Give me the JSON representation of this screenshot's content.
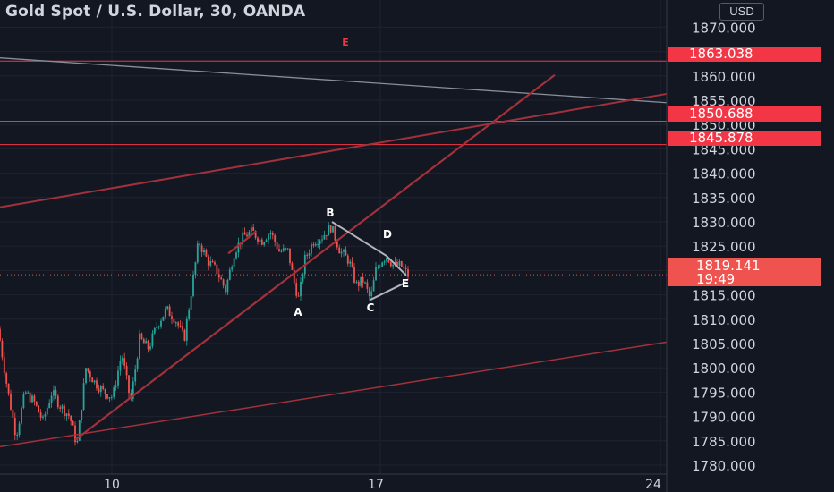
{
  "header": {
    "title": "Gold Spot / U.S. Dollar, 30, OANDA",
    "currency": "USD"
  },
  "price_tags": [
    {
      "label": "1863.038",
      "price": 1863.038
    },
    {
      "label": "1850.688",
      "price": 1850.688
    },
    {
      "label": "1845.878",
      "price": 1845.878
    }
  ],
  "last_price": {
    "price": "1819.141",
    "countdown": "19:49"
  },
  "wave_labels": {
    "A": "A",
    "B": "B",
    "C": "C",
    "D": "D",
    "E": "E",
    "E_top": "E"
  },
  "chart_data": {
    "type": "line",
    "title": "Gold Spot / U.S. Dollar, 30, OANDA",
    "y_tick_labels": [
      "1870.000",
      "1865.000",
      "1860.000",
      "1855.000",
      "1850.000",
      "1845.000",
      "1840.000",
      "1835.000",
      "1830.000",
      "1825.000",
      "1820.000",
      "1815.000",
      "1810.000",
      "1805.000",
      "1800.000",
      "1795.000",
      "1790.000",
      "1785.000",
      "1780.000"
    ],
    "x_tick_labels": [
      "10",
      "17",
      "24"
    ],
    "ylim": [
      1777,
      1871
    ],
    "grid": true,
    "colors": {
      "up": "#26a69a",
      "down": "#ef5350",
      "trendline": "#a3313b",
      "horizontal": "#f23645",
      "pattern": "#b2b5be"
    },
    "close_path": [
      [
        -2,
        1808
      ],
      [
        8,
        1796
      ],
      [
        18,
        1786
      ],
      [
        28,
        1795
      ],
      [
        38,
        1793
      ],
      [
        48,
        1789
      ],
      [
        58,
        1795
      ],
      [
        68,
        1792
      ],
      [
        78,
        1790
      ],
      [
        86,
        1784
      ],
      [
        96,
        1800
      ],
      [
        106,
        1797
      ],
      [
        116,
        1795
      ],
      [
        126,
        1794
      ],
      [
        136,
        1803
      ],
      [
        146,
        1793
      ],
      [
        156,
        1806
      ],
      [
        166,
        1804
      ],
      [
        176,
        1809
      ],
      [
        186,
        1812
      ],
      [
        196,
        1810
      ],
      [
        206,
        1806
      ],
      [
        214,
        1816
      ],
      [
        222,
        1826
      ],
      [
        232,
        1822
      ],
      [
        242,
        1820
      ],
      [
        252,
        1816
      ],
      [
        262,
        1824
      ],
      [
        272,
        1827
      ],
      [
        282,
        1828
      ],
      [
        292,
        1826
      ],
      [
        302,
        1828
      ],
      [
        312,
        1824
      ],
      [
        322,
        1824
      ],
      [
        328,
        1818
      ],
      [
        334,
        1814
      ],
      [
        340,
        1822
      ],
      [
        350,
        1826
      ],
      [
        360,
        1827
      ],
      [
        370,
        1829
      ],
      [
        380,
        1824
      ],
      [
        390,
        1822
      ],
      [
        398,
        1817
      ],
      [
        406,
        1818
      ],
      [
        414,
        1814
      ],
      [
        420,
        1820
      ],
      [
        426,
        1822
      ],
      [
        432,
        1823
      ],
      [
        440,
        1821
      ],
      [
        448,
        1821
      ],
      [
        456,
        1819
      ]
    ],
    "pattern_points": {
      "A": [
        333,
        1814
      ],
      "B": [
        371,
        1830
      ],
      "C": [
        414,
        1814
      ],
      "D": [
        432,
        1823
      ],
      "E": [
        454,
        1819
      ]
    }
  }
}
